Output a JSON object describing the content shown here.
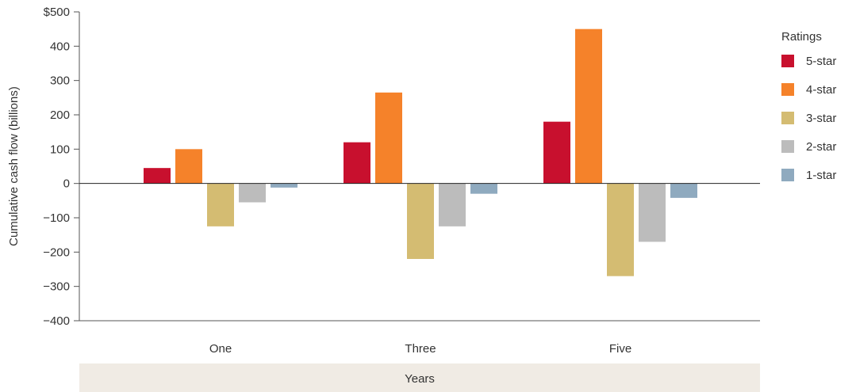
{
  "chart_data": {
    "type": "bar",
    "categories": [
      "One",
      "Three",
      "Five"
    ],
    "series": [
      {
        "name": "5-star",
        "color": "#c8102e",
        "values": [
          45,
          120,
          180
        ]
      },
      {
        "name": "4-star",
        "color": "#f5822a",
        "values": [
          100,
          265,
          450
        ]
      },
      {
        "name": "3-star",
        "color": "#d4bc72",
        "values": [
          -125,
          -220,
          -270
        ]
      },
      {
        "name": "2-star",
        "color": "#bcbcbc",
        "values": [
          -55,
          -125,
          -170
        ]
      },
      {
        "name": "1-star",
        "color": "#8faabf",
        "values": [
          -12,
          -30,
          -42
        ]
      }
    ],
    "ylim": [
      -400,
      500
    ],
    "yticks": [
      500,
      400,
      300,
      200,
      100,
      0,
      -100,
      -200,
      -300,
      -400
    ],
    "ytick_labels": [
      "$500",
      "400",
      "300",
      "200",
      "100",
      "0",
      "−100",
      "−200",
      "−300",
      "−400"
    ],
    "ylabel": "Cumulative cash flow (billions)",
    "xlabel": "Years",
    "legend_title": "Ratings",
    "legend_position": "right",
    "grid": false,
    "xlabel_band_color": "#f0ebe4"
  }
}
